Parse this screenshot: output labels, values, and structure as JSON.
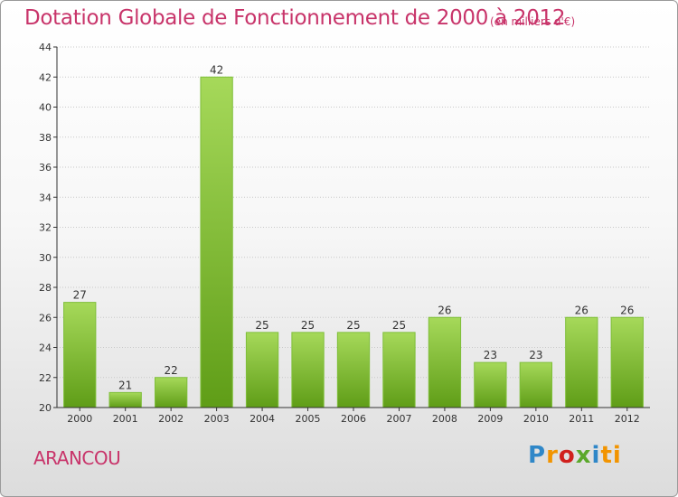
{
  "header": {
    "title": "Dotation Globale de Fonctionnement de 2000 à 2012",
    "unit": "(en milliers d'€)"
  },
  "footer": {
    "commune": "ARANCOU",
    "logo_text": "Proxiti",
    "logo_parts": [
      "P",
      "r",
      "o",
      "x",
      "i",
      "ti"
    ]
  },
  "colors": {
    "title": "#c8346a",
    "bar_light": "#a6d95a",
    "bar_dark": "#5f9d17",
    "grid": "#c8c8c8",
    "axis": "#333333"
  },
  "chart_data": {
    "type": "bar",
    "title": "Dotation Globale de Fonctionnement de 2000 à 2012",
    "subtitle": "(en milliers d'€)",
    "xlabel": "",
    "ylabel": "",
    "categories": [
      "2000",
      "2001",
      "2002",
      "2003",
      "2004",
      "2005",
      "2006",
      "2007",
      "2008",
      "2009",
      "2010",
      "2011",
      "2012"
    ],
    "values": [
      27,
      21,
      22,
      42,
      25,
      25,
      25,
      25,
      26,
      23,
      23,
      26,
      26
    ],
    "ylim": [
      20,
      44
    ],
    "yticks": [
      20,
      22,
      24,
      26,
      28,
      30,
      32,
      34,
      36,
      38,
      40,
      42,
      44
    ],
    "grid": true,
    "legend": "none"
  }
}
